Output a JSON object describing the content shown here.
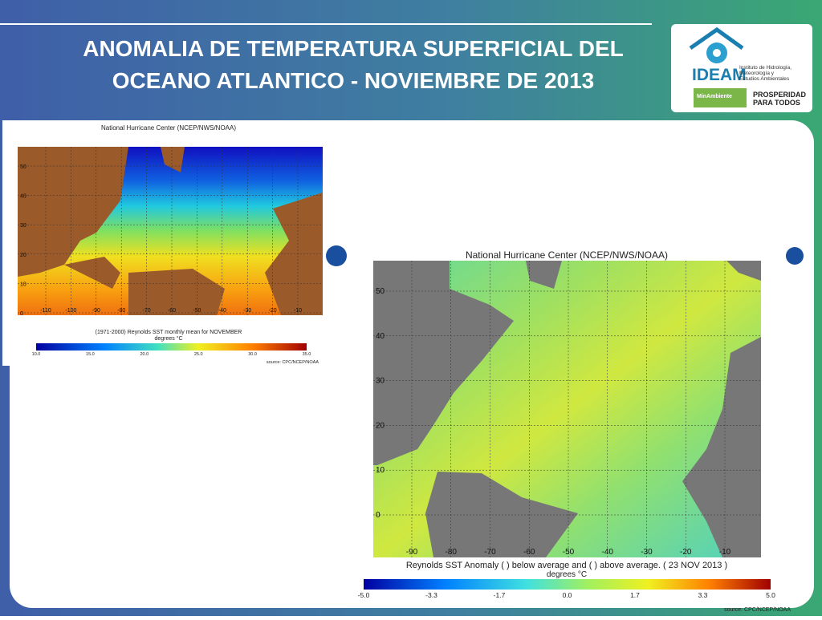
{
  "header": {
    "title_lines": [
      "ANOMALIA DE TEMPERATURA SUPERFICIAL DEL",
      "OCEANO ATLANTICO - NOVIEMBRE DE 2013"
    ]
  },
  "logo": {
    "name": "IDEAM",
    "subtitle_lines": [
      "Instituto de Hidrología,",
      "Meteorología y",
      "Estudios Ambientales"
    ],
    "ministry": "MinAmbiente",
    "slogan_lines": [
      "PROSPERIDAD",
      "PARA TODOS"
    ]
  },
  "map_climatology": {
    "title": "National Hurricane Center (NCEP/NWS/NOAA)",
    "lat_labels": [
      "50",
      "40",
      "30",
      "20",
      "10",
      "0"
    ],
    "lon_labels": [
      "-110",
      "-100",
      "-90",
      "-80",
      "-70",
      "-60",
      "-50",
      "-40",
      "-30",
      "-20",
      "-10"
    ],
    "caption": "(1971-2000) Reynolds SST monthly mean for NOVEMBER",
    "units": "degrees °C",
    "colorbar_labels": [
      "10.0",
      "15.0",
      "20.0",
      "25.0",
      "30.0",
      "35.0"
    ],
    "source": "source:  CPC/NCEP/NOAA"
  },
  "map_anomaly": {
    "title": "National Hurricane Center (NCEP/NWS/NOAA)",
    "lat_labels": [
      "50",
      "40",
      "30",
      "20",
      "10",
      "0"
    ],
    "lon_labels": [
      "-90",
      "-80",
      "-70",
      "-60",
      "-50",
      "-40",
      "-30",
      "-20",
      "-10"
    ],
    "caption": "Reynolds SST Anomaly (  ) below average and (  ) above average.  ( 23  NOV  2013 )",
    "units": "degrees °C",
    "colorbar_labels": [
      "-5.0",
      "-3.3",
      "-1.7",
      "0.0",
      "1.7",
      "3.3",
      "5.0"
    ],
    "source": "source:  CPC/NCEP/NOAA"
  }
}
